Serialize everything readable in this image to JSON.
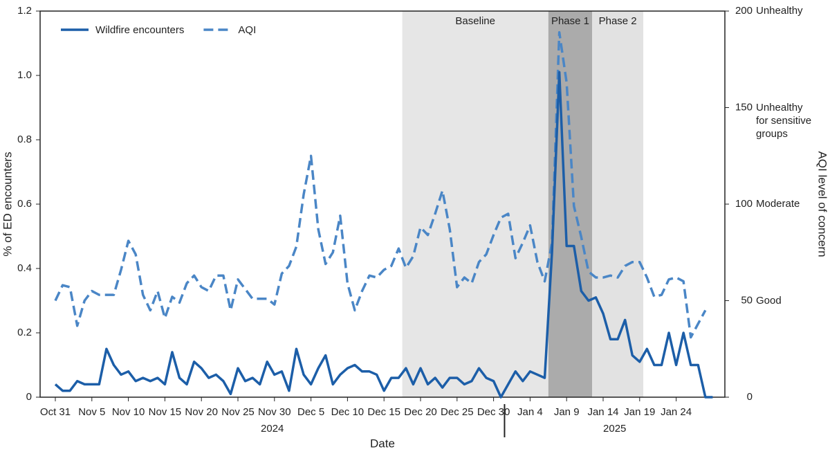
{
  "chart_data": {
    "type": "line",
    "x_label": "Date",
    "y_label": "% of ED encounters",
    "y2_label": "AQI level of concern",
    "categories": [
      "Oct 31",
      null,
      null,
      null,
      null,
      "Nov 5",
      null,
      null,
      null,
      null,
      "Nov 10",
      null,
      null,
      null,
      null,
      "Nov 15",
      null,
      null,
      null,
      null,
      "Nov 20",
      null,
      null,
      null,
      null,
      "Nov 25",
      null,
      null,
      null,
      null,
      "Nov 30",
      null,
      null,
      null,
      null,
      "Dec 5",
      null,
      null,
      null,
      null,
      "Dec 10",
      null,
      null,
      null,
      null,
      "Dec 15",
      null,
      null,
      null,
      null,
      "Dec 20",
      null,
      null,
      null,
      null,
      "Dec 25",
      null,
      null,
      null,
      null,
      "Dec 30",
      null,
      null,
      null,
      null,
      "Jan 4",
      null,
      null,
      null,
      null,
      "Jan 9",
      null,
      null,
      null,
      null,
      "Jan 14",
      null,
      null,
      null,
      null,
      "Jan 19",
      null,
      null,
      null,
      null,
      "Jan 24",
      null,
      null,
      null,
      null,
      null
    ],
    "years": [
      {
        "label": "2024",
        "start": 0,
        "end": 61
      },
      {
        "label": "2025",
        "start": 62,
        "end": 90
      }
    ],
    "regions": [
      {
        "label": "Baseline",
        "start": 47.5,
        "end": 67.5,
        "color": "#e6e6e6"
      },
      {
        "label": "Phase 1",
        "start": 67.5,
        "end": 73.5,
        "color": "#ababab"
      },
      {
        "label": "Phase 2",
        "start": 73.5,
        "end": 80.5,
        "color": "#e2e2e2"
      }
    ],
    "series": [
      {
        "name": "Wildfire encounters",
        "color": "#1c5ea8",
        "dashed": false,
        "axis": "y",
        "values": [
          0.04,
          0.02,
          0.02,
          0.05,
          0.04,
          0.04,
          0.04,
          0.15,
          0.1,
          0.07,
          0.08,
          0.05,
          0.06,
          0.05,
          0.06,
          0.04,
          0.14,
          0.06,
          0.04,
          0.11,
          0.09,
          0.06,
          0.07,
          0.05,
          0.01,
          0.09,
          0.05,
          0.06,
          0.04,
          0.11,
          0.07,
          0.08,
          0.02,
          0.15,
          0.07,
          0.04,
          0.09,
          0.13,
          0.04,
          0.07,
          0.09,
          0.1,
          0.08,
          0.08,
          0.07,
          0.02,
          0.06,
          0.06,
          0.09,
          0.04,
          0.09,
          0.04,
          0.06,
          0.03,
          0.06,
          0.06,
          0.04,
          0.05,
          0.09,
          0.06,
          0.05,
          0,
          0.04,
          0.08,
          0.05,
          0.08,
          0.07,
          0.06,
          0.45,
          1.01,
          0.47,
          0.47,
          0.33,
          0.3,
          0.31,
          0.26,
          0.18,
          0.18,
          0.24,
          0.13,
          0.11,
          0.15,
          0.1,
          0.1,
          0.2,
          0.1,
          0.2,
          0.1,
          0.1,
          0,
          0
        ]
      },
      {
        "name": "AQI",
        "color": "#4a86c6",
        "dashed": true,
        "axis": "y2",
        "values": [
          50,
          58,
          57,
          37,
          50,
          55,
          53,
          53,
          53,
          66,
          81,
          74,
          53,
          45,
          55,
          41,
          52,
          49,
          59,
          63,
          57,
          55,
          63,
          63,
          45,
          61,
          56,
          51,
          51,
          51,
          48,
          64,
          68,
          78,
          105,
          125,
          87,
          69,
          75,
          94,
          59,
          45,
          55,
          63,
          62,
          66,
          68,
          77,
          67,
          73,
          88,
          84,
          95,
          107,
          87,
          57,
          62,
          59,
          70,
          74,
          84,
          93,
          95,
          72,
          80,
          89,
          70,
          60,
          80,
          189,
          163,
          99,
          83,
          65,
          62,
          62,
          63,
          62,
          68,
          70,
          70,
          62,
          52,
          53,
          61,
          62,
          60,
          31,
          38,
          45,
          null
        ]
      }
    ],
    "ylim": [
      0,
      1.2
    ],
    "yticks": [
      0,
      0.2,
      0.4,
      0.6,
      0.8,
      {
        "value": 1,
        "label": "1.0"
      },
      1.2
    ],
    "y2lim": [
      0,
      200
    ],
    "y2ticks": [
      0,
      50,
      100,
      150,
      200
    ],
    "y2_level_labels": [
      {
        "value": 50,
        "label": "Good"
      },
      {
        "value": 100,
        "label": "Moderate"
      },
      {
        "value": 150,
        "label": "Unhealthy for sensitive groups"
      },
      {
        "value": 200,
        "label": "Unhealthy"
      }
    ],
    "legend": "top-left",
    "grid": false
  }
}
